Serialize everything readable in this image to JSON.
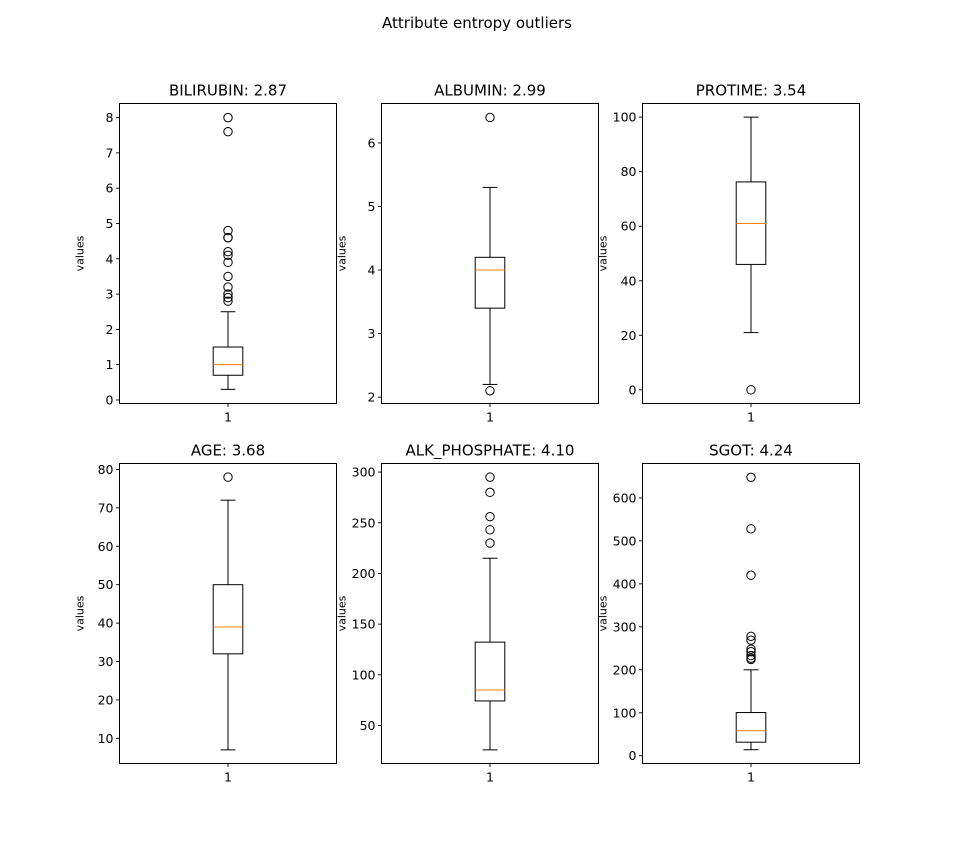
{
  "chart_data": {
    "type": "box",
    "suptitle": "Attribute entropy outliers",
    "panels": [
      {
        "title": "BILIRUBIN: 2.87",
        "ylabel": "values",
        "xticks": [
          "1"
        ],
        "ylim": [
          -0.1,
          8.4
        ],
        "yticks": [
          0,
          1,
          2,
          3,
          4,
          5,
          6,
          7,
          8
        ],
        "box": {
          "whisker_low": 0.3,
          "q1": 0.7,
          "median": 1.0,
          "q3": 1.5,
          "whisker_high": 2.5
        },
        "fliers": [
          2.8,
          2.9,
          3.0,
          3.2,
          3.5,
          3.9,
          4.1,
          4.2,
          4.6,
          4.6,
          4.8,
          7.6,
          8.0
        ]
      },
      {
        "title": "ALBUMIN: 2.99",
        "ylabel": "values",
        "xticks": [
          "1"
        ],
        "ylim": [
          1.9,
          6.62
        ],
        "yticks": [
          2,
          3,
          4,
          5,
          6
        ],
        "box": {
          "whisker_low": 2.2,
          "q1": 3.4,
          "median": 4.0,
          "q3": 4.2,
          "whisker_high": 5.3
        },
        "fliers": [
          2.1,
          6.4
        ]
      },
      {
        "title": "PROTIME: 3.54",
        "ylabel": "values",
        "xticks": [
          "1"
        ],
        "ylim": [
          -5,
          105
        ],
        "yticks": [
          0,
          20,
          40,
          60,
          80,
          100
        ],
        "box": {
          "whisker_low": 21,
          "q1": 46,
          "median": 61,
          "q3": 76.25,
          "whisker_high": 100
        },
        "fliers": [
          0
        ]
      },
      {
        "title": "AGE: 3.68",
        "ylabel": "values",
        "xticks": [
          "1"
        ],
        "ylim": [
          3.45,
          81.55
        ],
        "yticks": [
          10,
          20,
          30,
          40,
          50,
          60,
          70,
          80
        ],
        "box": {
          "whisker_low": 7,
          "q1": 32,
          "median": 39,
          "q3": 50,
          "whisker_high": 72
        },
        "fliers": [
          78
        ]
      },
      {
        "title": "ALK_PHOSPHATE: 4.10",
        "ylabel": "values",
        "xticks": [
          "1"
        ],
        "ylim": [
          12.55,
          308.45
        ],
        "yticks": [
          50,
          100,
          150,
          200,
          250,
          300
        ],
        "box": {
          "whisker_low": 26,
          "q1": 74.25,
          "median": 85,
          "q3": 132.25,
          "whisker_high": 215
        },
        "fliers": [
          230,
          243,
          256,
          280,
          295
        ]
      },
      {
        "title": "SGOT: 4.24",
        "ylabel": "values",
        "xticks": [
          "1"
        ],
        "ylim": [
          -18.1,
          680.1
        ],
        "yticks": [
          0,
          100,
          200,
          300,
          400,
          500,
          600
        ],
        "box": {
          "whisker_low": 14,
          "q1": 31.5,
          "median": 58,
          "q3": 100.5,
          "whisker_high": 200
        },
        "fliers": [
          224,
          227,
          233,
          242,
          248,
          269,
          278,
          420,
          528,
          648
        ]
      }
    ]
  }
}
